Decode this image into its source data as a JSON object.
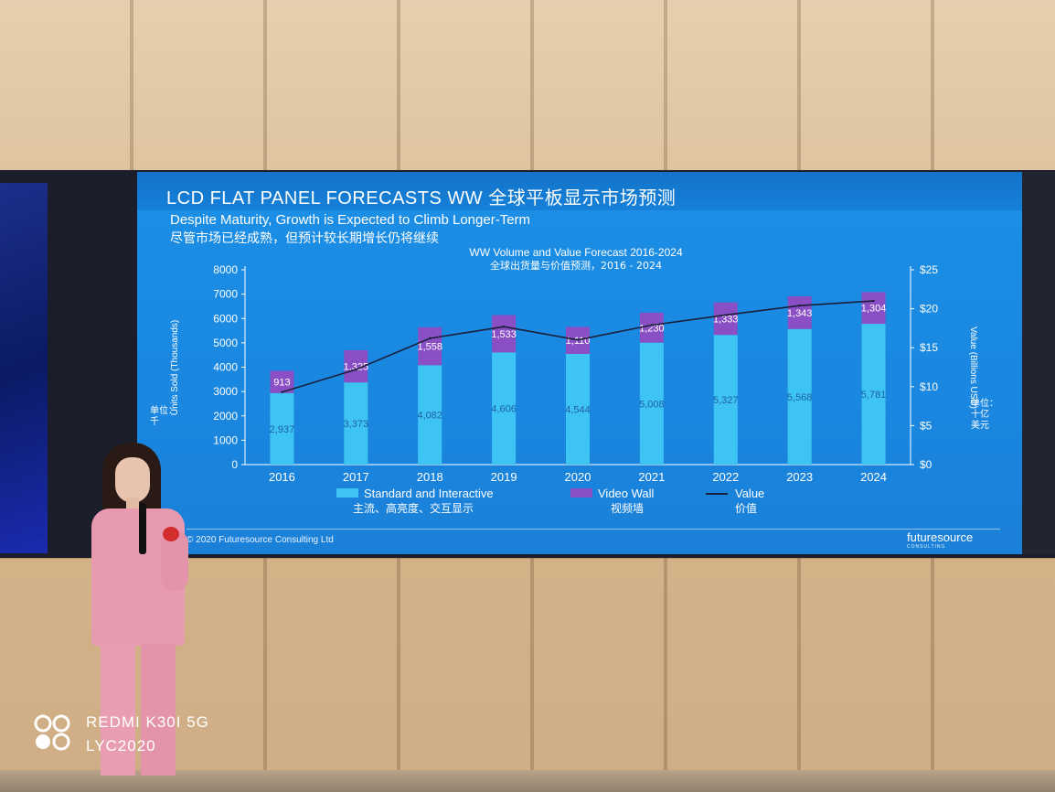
{
  "slide": {
    "title": "LCD FLAT PANEL FORECASTS WW 全球平板显示市场预测",
    "subtitle_en": "Despite Maturity, Growth is Expected to Climb Longer-Term",
    "subtitle_cn": "尽管市场已经成熟，但预计较长期增长仍将继续",
    "copyright": "© 2020 Futuresource Consulting Ltd",
    "logo": "futuresource",
    "logo_sub": "CONSULTING"
  },
  "chart_data": {
    "type": "bar",
    "title": "WW Volume and Value Forecast 2016-2024",
    "subtitle": "全球出货量与价值预测，2016 - 2024",
    "ylabel": "Units Sold (Thousands)",
    "ylabel_cn": "单位：千",
    "y2label": "Value (Billions USD)",
    "y2label_cn": "单位：十亿美元",
    "categories": [
      "2016",
      "2017",
      "2018",
      "2019",
      "2020",
      "2021",
      "2022",
      "2023",
      "2024"
    ],
    "ylim": [
      0,
      8000
    ],
    "yticks": [
      "0",
      "1000",
      "2000",
      "3000",
      "4000",
      "5000",
      "6000",
      "7000",
      "8000"
    ],
    "y2lim": [
      0,
      25
    ],
    "y2ticks": [
      "$0",
      "$5",
      "$10",
      "$15",
      "$20",
      "$25"
    ],
    "stacked": true,
    "series": [
      {
        "name": "Standard and Interactive",
        "name_cn": "主流、高亮度、交互显示",
        "color": "#3ec4f2",
        "values": [
          2937,
          3373,
          4082,
          4606,
          4544,
          5008,
          5327,
          5568,
          5781
        ],
        "labels": [
          "2,937",
          "3,373",
          "4,082",
          "4,606",
          "4,544",
          "5,008",
          "5,327",
          "5,568",
          "5,781"
        ]
      },
      {
        "name": "Video Wall",
        "name_cn": "视频墙",
        "color": "#8a4fc4",
        "values": [
          913,
          1325,
          1558,
          1533,
          1110,
          1230,
          1333,
          1343,
          1304
        ],
        "labels": [
          "913",
          "1,325",
          "1,558",
          "1,533",
          "1,110",
          "1,230",
          "1,333",
          "1,343",
          "1,304"
        ]
      },
      {
        "name": "Value",
        "name_cn": "价值",
        "type": "line",
        "axis": "right",
        "color": "#1a1f3a",
        "values": [
          9.3,
          12.2,
          16.2,
          17.7,
          16.0,
          17.9,
          19.2,
          20.4,
          21.0
        ]
      }
    ],
    "legend_position": "bottom"
  },
  "watermark": {
    "line1": "REDMI K30I 5G",
    "line2": "LYC2020"
  }
}
